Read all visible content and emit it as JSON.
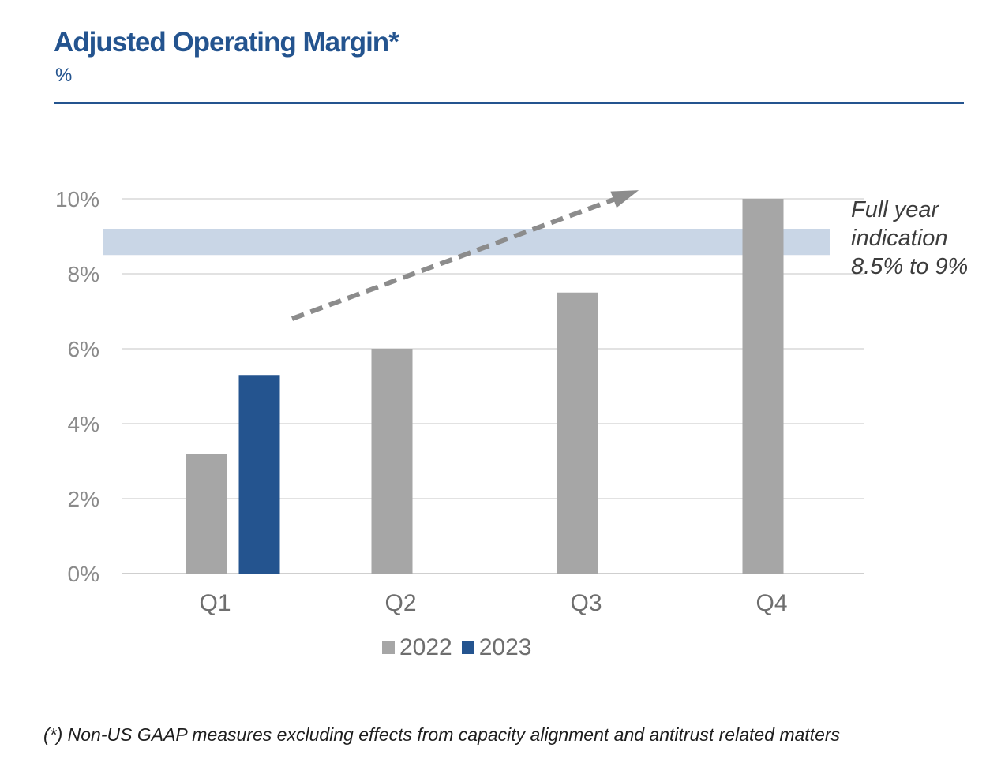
{
  "header": {
    "title": "Adjusted Operating Margin*",
    "subtitle": "%"
  },
  "annotation": {
    "lines": [
      "Full year",
      "indication",
      "8.5% to 9%"
    ],
    "band_range": [
      8.5,
      9.2
    ]
  },
  "footnote": "(*) Non-US GAAP measures excluding effects from capacity alignment and antitrust related matters",
  "colors": {
    "brand": "#24548f",
    "series_2022": "#a6a6a6",
    "series_2023": "#24548f",
    "band": "#c9d6e6",
    "arrow": "#8c8c8c"
  },
  "chart_data": {
    "type": "bar",
    "categories": [
      "Q1",
      "Q2",
      "Q3",
      "Q4"
    ],
    "series": [
      {
        "name": "2022",
        "values": [
          3.2,
          6.0,
          7.5,
          10.0
        ]
      },
      {
        "name": "2023",
        "values": [
          5.3,
          null,
          null,
          null
        ]
      }
    ],
    "yticks": [
      "0%",
      "2%",
      "4%",
      "6%",
      "8%",
      "10%"
    ],
    "ylim": [
      0,
      10
    ],
    "grid": true,
    "legend_position": "bottom"
  }
}
